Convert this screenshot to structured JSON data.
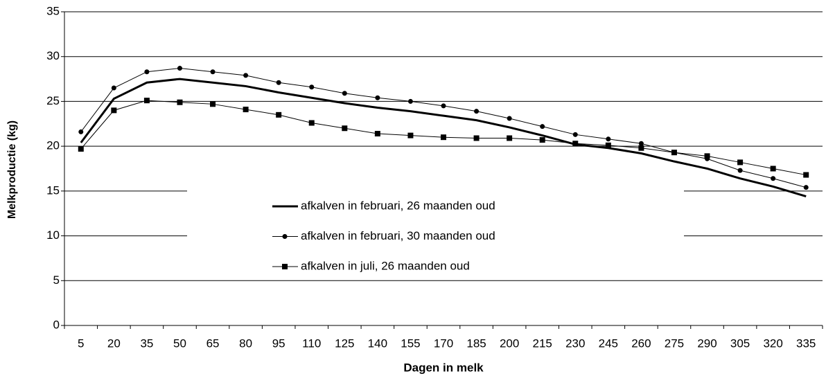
{
  "chart_data": {
    "type": "line",
    "x_label": "Dagen in melk",
    "y_label": "Melkproductie (kg)",
    "categories": [
      "5",
      "20",
      "35",
      "50",
      "65",
      "80",
      "95",
      "110",
      "125",
      "140",
      "155",
      "170",
      "185",
      "200",
      "215",
      "230",
      "245",
      "260",
      "275",
      "290",
      "305",
      "320",
      "335"
    ],
    "series": [
      {
        "name": "afkalven in februari, 26 maanden oud",
        "color": "#000000",
        "marker": "none",
        "line_width": 3,
        "values": [
          20.4,
          25.3,
          27.1,
          27.5,
          27.1,
          26.7,
          26.0,
          25.4,
          24.8,
          24.3,
          23.9,
          23.4,
          22.9,
          22.1,
          21.2,
          20.2,
          19.8,
          19.2,
          18.3,
          17.5,
          16.4,
          15.5,
          14.4
        ]
      },
      {
        "name": "afkalven in februari, 30 maanden oud",
        "color": "#000000",
        "marker": "circle",
        "line_width": 1,
        "values": [
          21.6,
          26.5,
          28.3,
          28.7,
          28.3,
          27.9,
          27.1,
          26.6,
          25.9,
          25.4,
          25.0,
          24.5,
          23.9,
          23.1,
          22.2,
          21.3,
          20.8,
          20.3,
          19.3,
          18.6,
          17.3,
          16.4,
          15.4
        ]
      },
      {
        "name": "afkalven in juli, 26 maanden oud",
        "color": "#000000",
        "marker": "square",
        "line_width": 1,
        "values": [
          19.7,
          24.0,
          25.1,
          24.9,
          24.7,
          24.1,
          23.5,
          22.6,
          22.0,
          21.4,
          21.2,
          21.0,
          20.9,
          20.9,
          20.7,
          20.3,
          20.1,
          19.8,
          19.3,
          18.9,
          18.2,
          17.5,
          16.8
        ]
      }
    ],
    "ylim": [
      0,
      35
    ],
    "yticks": [
      0,
      5,
      10,
      15,
      20,
      25,
      30,
      35
    ],
    "grid": true,
    "legend": "center"
  }
}
